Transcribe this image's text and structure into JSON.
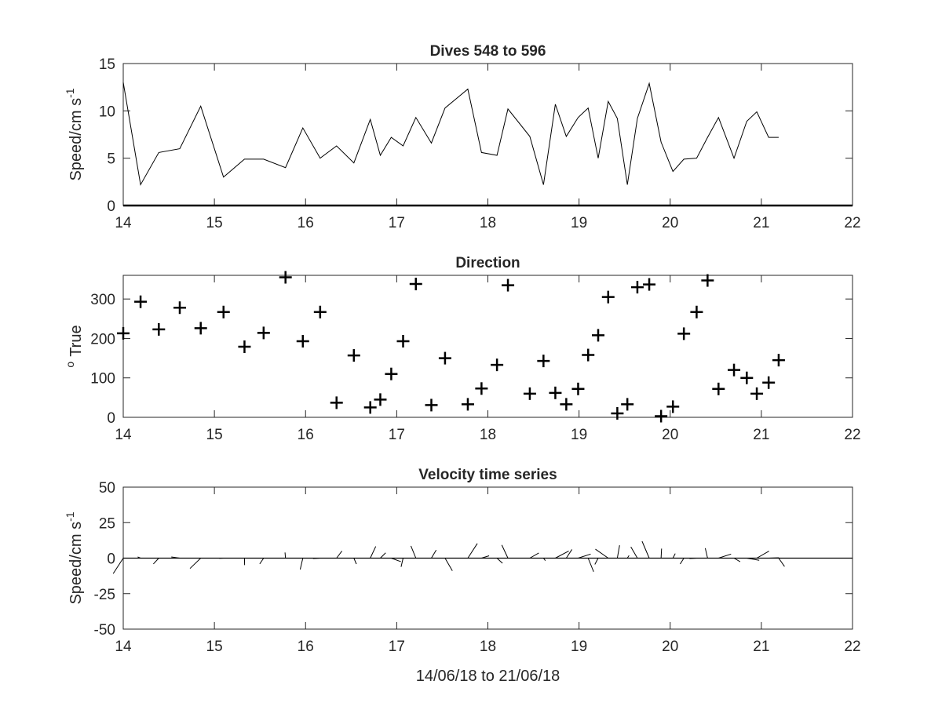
{
  "chart_data": [
    {
      "type": "line",
      "title": "Dives 548 to 596",
      "ylabel": "Speed/cm s",
      "ylabel_superscript": "-1",
      "xlim": [
        14,
        22
      ],
      "ylim": [
        0,
        15
      ],
      "x_ticks": [
        "14",
        "15",
        "16",
        "17",
        "18",
        "19",
        "20",
        "21",
        "22"
      ],
      "y_ticks": [
        "0",
        "5",
        "10",
        "15"
      ],
      "grid": false,
      "series": [
        {
          "x": [
            14.0,
            14.19,
            14.39,
            14.62,
            14.85,
            15.1,
            15.33,
            15.54,
            15.78,
            15.97,
            16.16,
            16.34,
            16.53,
            16.71,
            16.82,
            16.94,
            17.07,
            17.21,
            17.38,
            17.53,
            17.78,
            17.93,
            18.1,
            18.22,
            18.46,
            18.61,
            18.74,
            18.86,
            18.99,
            19.1,
            19.21,
            19.32,
            19.42,
            19.53,
            19.64,
            19.77,
            19.9,
            20.03,
            20.15,
            20.29,
            20.41,
            20.53,
            20.7,
            20.84,
            20.95,
            21.08,
            21.19
          ],
          "values": [
            13.0,
            2.2,
            5.6,
            6.0,
            10.5,
            3.0,
            4.9,
            4.9,
            4.0,
            8.2,
            5.0,
            6.3,
            4.5,
            9.1,
            5.3,
            7.2,
            6.3,
            9.3,
            6.6,
            10.3,
            12.3,
            5.6,
            5.3,
            10.2,
            7.3,
            2.2,
            10.7,
            7.3,
            9.3,
            10.3,
            5.0,
            11.0,
            9.2,
            2.2,
            9.2,
            12.9,
            6.7,
            3.6,
            4.9,
            5.0,
            7.2,
            9.3,
            5.0,
            8.9,
            9.9,
            7.2,
            7.2
          ]
        }
      ]
    },
    {
      "type": "scatter",
      "title": "Direction",
      "ylabel": "True",
      "ylabel_prefix_superscript": "o",
      "xlim": [
        14,
        22
      ],
      "ylim": [
        0,
        360
      ],
      "x_ticks": [
        "14",
        "15",
        "16",
        "17",
        "18",
        "19",
        "20",
        "21",
        "22"
      ],
      "y_ticks": [
        "0",
        "100",
        "200",
        "300"
      ],
      "grid": false,
      "marker": "+",
      "series": [
        {
          "x": [
            14.0,
            14.19,
            14.39,
            14.62,
            14.85,
            15.1,
            15.33,
            15.54,
            15.78,
            15.97,
            16.16,
            16.34,
            16.53,
            16.71,
            16.82,
            16.94,
            17.07,
            17.21,
            17.38,
            17.53,
            17.78,
            17.93,
            18.1,
            18.22,
            18.46,
            18.61,
            18.74,
            18.86,
            18.99,
            19.1,
            19.21,
            19.32,
            19.42,
            19.53,
            19.64,
            19.77,
            19.9,
            20.03,
            20.15,
            20.29,
            20.41,
            20.53,
            20.7,
            20.84,
            20.95,
            21.08,
            21.19
          ],
          "values": [
            213,
            293,
            223,
            278,
            226,
            267,
            179,
            214,
            355,
            193,
            267,
            37,
            157,
            25,
            45,
            110,
            193,
            338,
            31,
            150,
            33,
            73,
            133,
            335,
            60,
            143,
            62,
            33,
            72,
            158,
            208,
            305,
            10,
            33,
            330,
            337,
            3,
            27,
            212,
            267,
            347,
            72,
            120,
            100,
            60,
            88,
            145
          ]
        }
      ]
    },
    {
      "type": "quiver",
      "title": "Velocity time series",
      "ylabel": "Speed/cm s",
      "ylabel_superscript": "-1",
      "xlabel": "14/06/18 to 21/06/18",
      "xlim": [
        14,
        22
      ],
      "ylim": [
        -50,
        50
      ],
      "x_ticks": [
        "14",
        "15",
        "16",
        "17",
        "18",
        "19",
        "20",
        "21",
        "22"
      ],
      "y_ticks": [
        "-50",
        "-25",
        "0",
        "25",
        "50"
      ],
      "grid": false,
      "note": "stick plot: each stick starts on the zero line at its time and points in the direction given by the Direction panel with length equal to the speed",
      "x": [
        14.0,
        14.19,
        14.39,
        14.62,
        14.85,
        15.1,
        15.33,
        15.54,
        15.78,
        15.97,
        16.16,
        16.34,
        16.53,
        16.71,
        16.82,
        16.94,
        17.07,
        17.21,
        17.38,
        17.53,
        17.78,
        17.93,
        18.1,
        18.22,
        18.46,
        18.61,
        18.74,
        18.86,
        18.99,
        19.1,
        19.21,
        19.32,
        19.42,
        19.53,
        19.64,
        19.77,
        19.9,
        20.03,
        20.15,
        20.29,
        20.41,
        20.53,
        20.7,
        20.84,
        20.95,
        21.08,
        21.19
      ],
      "speed": [
        13.0,
        2.2,
        5.6,
        6.0,
        10.5,
        3.0,
        4.9,
        4.9,
        4.0,
        8.2,
        5.0,
        6.3,
        4.5,
        9.1,
        5.3,
        7.2,
        6.3,
        9.3,
        6.6,
        10.3,
        12.3,
        5.6,
        5.3,
        10.2,
        7.3,
        2.2,
        10.7,
        7.3,
        9.3,
        10.3,
        5.0,
        11.0,
        9.2,
        2.2,
        9.2,
        12.9,
        6.7,
        3.6,
        4.9,
        5.0,
        7.2,
        9.3,
        5.0,
        8.9,
        9.9,
        7.2,
        7.2
      ],
      "direction_deg_true": [
        213,
        293,
        223,
        278,
        226,
        267,
        179,
        214,
        355,
        193,
        267,
        37,
        157,
        25,
        45,
        110,
        193,
        338,
        31,
        150,
        33,
        73,
        133,
        335,
        60,
        143,
        62,
        33,
        72,
        158,
        208,
        305,
        10,
        33,
        330,
        337,
        3,
        27,
        212,
        267,
        347,
        72,
        120,
        100,
        60,
        88,
        145
      ]
    }
  ]
}
